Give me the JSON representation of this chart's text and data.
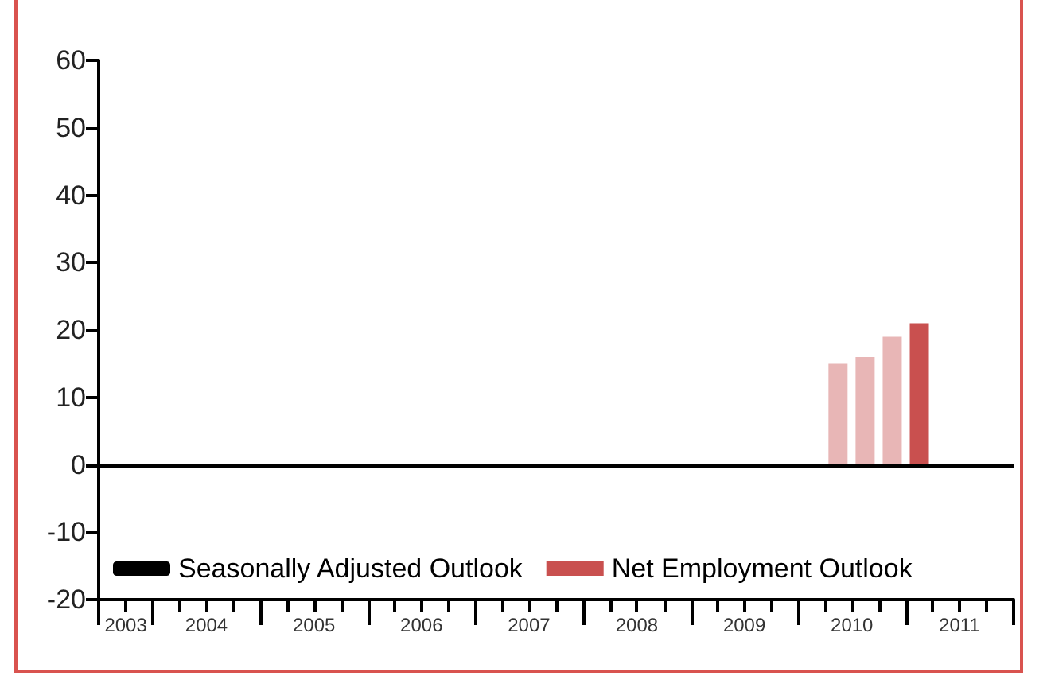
{
  "chart_data": {
    "type": "bar",
    "x": [
      "2010-05-15",
      "2010-08-15",
      "2010-11-15",
      "2011-02-15"
    ],
    "series": [
      {
        "name": "Seasonally Adjusted Outlook",
        "type": "line",
        "color": "#000000",
        "values": [
          null,
          null,
          null,
          null
        ]
      },
      {
        "name": "Net Employment Outlook",
        "color": "#c9504f",
        "colors": [
          "#e8b6b6",
          "#e8b6b6",
          "#e8b6b6",
          "#c9504f"
        ],
        "values": [
          15,
          16,
          19,
          21
        ]
      }
    ],
    "xlim": [
      "2003-07-01",
      "2012-01-01"
    ],
    "xticks": [
      {
        "value": "2003-10-01",
        "label": "2003"
      },
      {
        "value": "2004-07-01",
        "label": "2004"
      },
      {
        "value": "2005-07-01",
        "label": "2005"
      },
      {
        "value": "2006-07-01",
        "label": "2006"
      },
      {
        "value": "2007-07-01",
        "label": "2007"
      },
      {
        "value": "2008-07-01",
        "label": "2008"
      },
      {
        "value": "2009-07-01",
        "label": "2009"
      },
      {
        "value": "2010-07-01",
        "label": "2010"
      },
      {
        "value": "2011-07-01",
        "label": "2011"
      },
      {
        "value": "2003-07-01",
        "label": null
      },
      {
        "value": "2003-10-01",
        "label": null
      },
      {
        "value": "2004-01-01",
        "label": null
      },
      {
        "value": "2004-04-01",
        "label": null
      },
      {
        "value": "2004-07-01",
        "label": null
      },
      {
        "value": "2004-10-01",
        "label": null
      },
      {
        "value": "2005-01-01",
        "label": null
      },
      {
        "value": "2005-04-01",
        "label": null
      },
      {
        "value": "2005-07-01",
        "label": null
      },
      {
        "value": "2005-10-01",
        "label": null
      },
      {
        "value": "2006-01-01",
        "label": null
      },
      {
        "value": "2006-04-01",
        "label": null
      },
      {
        "value": "2006-07-01",
        "label": null
      },
      {
        "value": "2006-10-01",
        "label": null
      },
      {
        "value": "2007-01-01",
        "label": null
      },
      {
        "value": "2007-04-01",
        "label": null
      },
      {
        "value": "2007-07-01",
        "label": null
      },
      {
        "value": "2007-10-01",
        "label": null
      },
      {
        "value": "2008-01-01",
        "label": null
      },
      {
        "value": "2008-04-01",
        "label": null
      },
      {
        "value": "2008-07-01",
        "label": null
      },
      {
        "value": "2008-10-01",
        "label": null
      },
      {
        "value": "2009-01-01",
        "label": null
      },
      {
        "value": "2009-04-01",
        "label": null
      },
      {
        "value": "2009-07-01",
        "label": null
      },
      {
        "value": "2009-10-01",
        "label": null
      },
      {
        "value": "2010-01-01",
        "label": null
      },
      {
        "value": "2010-04-01",
        "label": null
      },
      {
        "value": "2010-07-01",
        "label": null
      },
      {
        "value": "2010-10-01",
        "label": null
      },
      {
        "value": "2011-01-01",
        "label": null
      },
      {
        "value": "2011-04-01",
        "label": null
      },
      {
        "value": "2011-07-01",
        "label": null
      },
      {
        "value": "2011-10-01",
        "label": null
      },
      {
        "value": "2012-01-01",
        "label": null
      }
    ],
    "ylim": [
      -20,
      60
    ],
    "yticks": [
      -20,
      -10,
      0,
      10,
      20,
      30,
      40,
      50,
      60
    ],
    "ref_lines": [
      {
        "axis": "y",
        "value": 0,
        "color": "#000000"
      }
    ],
    "grid": false,
    "legend": "bottom"
  }
}
